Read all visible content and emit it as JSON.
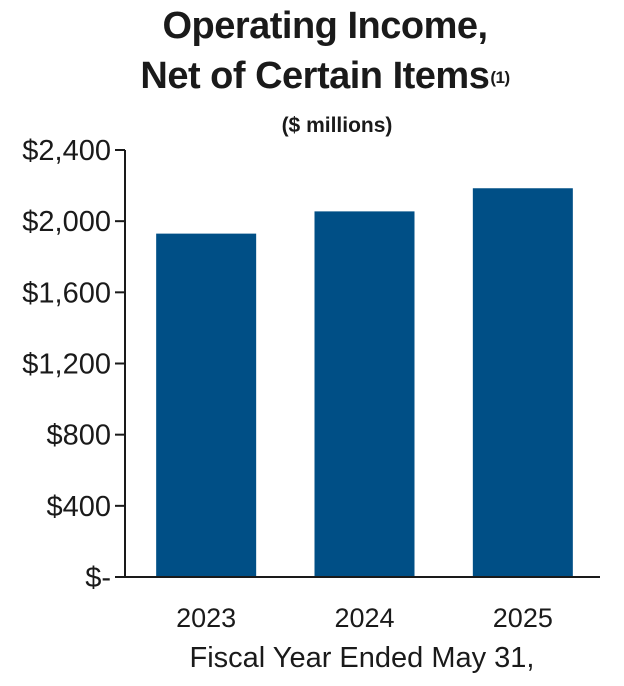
{
  "chart_data": {
    "type": "bar",
    "title_line1": "Operating Income,",
    "title_line2": "Net of Certain Items",
    "title_footnote": "(1)",
    "subtitle": "($ millions)",
    "categories": [
      "2023",
      "2024",
      "2025"
    ],
    "values": [
      1930,
      2055,
      2185
    ],
    "ylim": [
      0,
      2400
    ],
    "yticks": [
      0,
      400,
      800,
      1200,
      1600,
      2000,
      2400
    ],
    "ytick_labels": [
      "$-",
      "$400",
      "$800",
      "$1,200",
      "$1,600",
      "$2,000",
      "$2,400"
    ],
    "xlabel": "Fiscal Year Ended May 31,",
    "ylabel": "",
    "bar_color": "#004F86",
    "grid": false
  }
}
